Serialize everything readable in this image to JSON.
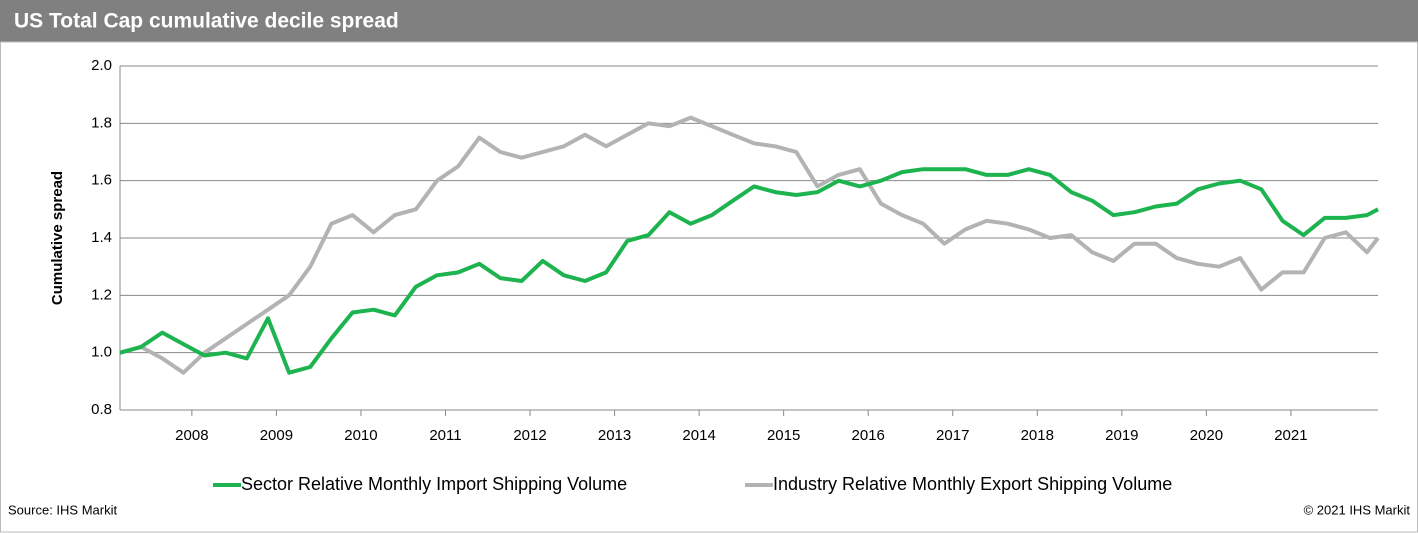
{
  "chart_data": {
    "type": "line",
    "title": "US Total Cap cumulative decile spread",
    "y_label": "Cumulative spread",
    "source": "Source: IHS Markit",
    "copyright": "© 2021 IHS Markit",
    "x": [
      2007.15,
      2007.4,
      2007.65,
      2007.9,
      2008.15,
      2008.4,
      2008.65,
      2008.9,
      2009.15,
      2009.4,
      2009.65,
      2009.9,
      2010.15,
      2010.4,
      2010.65,
      2010.9,
      2011.15,
      2011.4,
      2011.65,
      2011.9,
      2012.15,
      2012.4,
      2012.65,
      2012.9,
      2013.15,
      2013.4,
      2013.65,
      2013.9,
      2014.15,
      2014.4,
      2014.65,
      2014.9,
      2015.15,
      2015.4,
      2015.65,
      2015.9,
      2016.15,
      2016.4,
      2016.65,
      2016.9,
      2017.15,
      2017.4,
      2017.65,
      2017.9,
      2018.15,
      2018.4,
      2018.65,
      2018.9,
      2019.15,
      2019.4,
      2019.65,
      2019.9,
      2020.15,
      2020.4,
      2020.65,
      2020.9,
      2021.15,
      2021.4,
      2021.65,
      2021.9,
      2022.03
    ],
    "series": [
      {
        "name": "Sector Relative Monthly Import Shipping Volume",
        "color": "#1db34f",
        "values": [
          1.0,
          1.02,
          1.07,
          1.03,
          0.99,
          1.0,
          0.98,
          1.12,
          0.93,
          0.95,
          1.05,
          1.14,
          1.15,
          1.13,
          1.23,
          1.27,
          1.28,
          1.31,
          1.26,
          1.25,
          1.32,
          1.27,
          1.25,
          1.28,
          1.39,
          1.41,
          1.49,
          1.45,
          1.48,
          1.53,
          1.58,
          1.56,
          1.55,
          1.56,
          1.6,
          1.58,
          1.6,
          1.63,
          1.64,
          1.64,
          1.64,
          1.62,
          1.62,
          1.64,
          1.62,
          1.56,
          1.53,
          1.48,
          1.49,
          1.51,
          1.52,
          1.57,
          1.59,
          1.6,
          1.57,
          1.46,
          1.41,
          1.47,
          1.47,
          1.48,
          1.5
        ]
      },
      {
        "name": "Industry Relative Monthly Export Shipping Volume",
        "color": "#b3b3b3",
        "values": [
          1.0,
          1.02,
          0.98,
          0.93,
          1.0,
          1.05,
          1.1,
          1.15,
          1.2,
          1.3,
          1.45,
          1.48,
          1.42,
          1.48,
          1.5,
          1.6,
          1.65,
          1.75,
          1.7,
          1.68,
          1.7,
          1.72,
          1.76,
          1.72,
          1.76,
          1.8,
          1.79,
          1.82,
          1.79,
          1.76,
          1.73,
          1.72,
          1.7,
          1.58,
          1.62,
          1.64,
          1.52,
          1.48,
          1.45,
          1.38,
          1.43,
          1.46,
          1.45,
          1.43,
          1.4,
          1.41,
          1.35,
          1.32,
          1.38,
          1.38,
          1.33,
          1.31,
          1.3,
          1.33,
          1.22,
          1.28,
          1.28,
          1.4,
          1.42,
          1.35,
          1.4
        ]
      }
    ],
    "xlim": [
      2007.15,
      2022.03
    ],
    "xticks": [
      2008,
      2009,
      2010,
      2011,
      2012,
      2013,
      2014,
      2015,
      2016,
      2017,
      2018,
      2019,
      2020,
      2021
    ],
    "ylim": [
      0.8,
      2.0
    ],
    "yticks": [
      {
        "value": 0.8,
        "label": "0.8"
      },
      {
        "value": 1.0,
        "label": "1.0"
      },
      {
        "value": 1.2,
        "label": "1.2"
      },
      {
        "value": 1.4,
        "label": "1.4"
      },
      {
        "value": 1.6,
        "label": "1.6"
      },
      {
        "value": 1.8,
        "label": "1.8"
      },
      {
        "value": 2.0,
        "label": "2.0"
      }
    ],
    "grid": true
  }
}
